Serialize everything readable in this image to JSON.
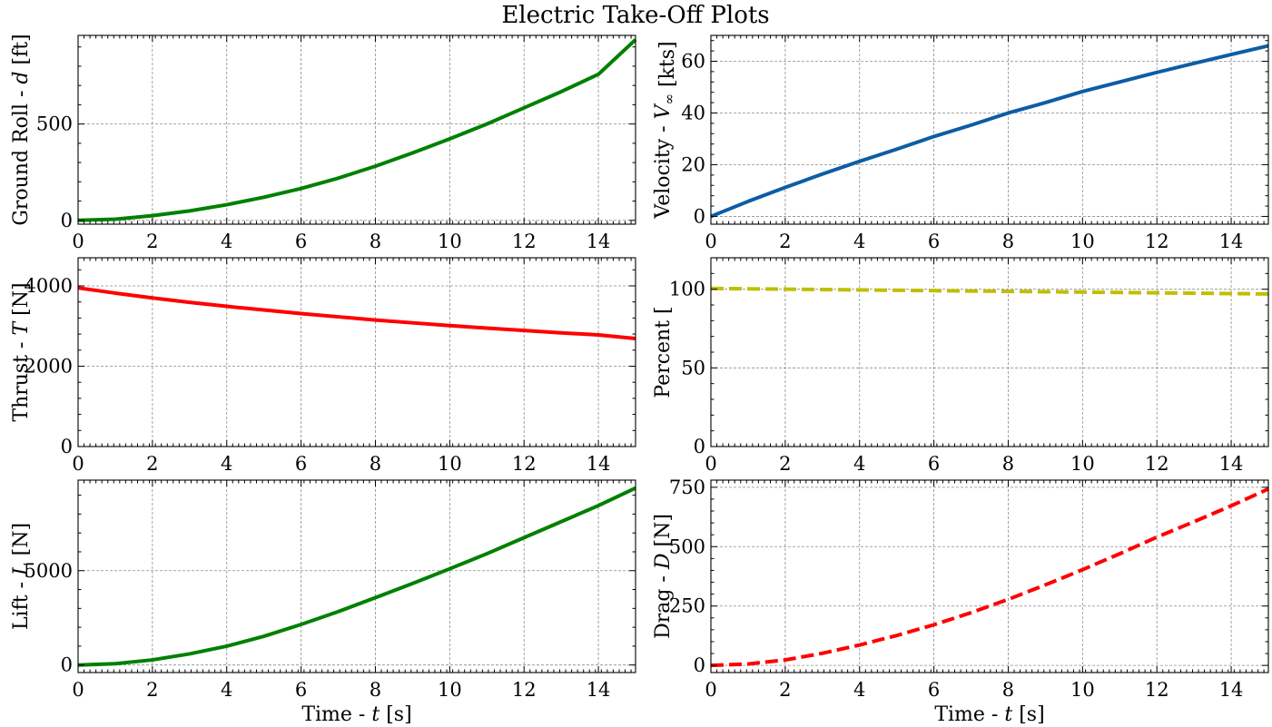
{
  "figure": {
    "title": "Electric Take-Off Plots"
  },
  "chart_data": [
    {
      "id": "ground-roll",
      "type": "line",
      "ylabel_main": "Ground Roll - ",
      "ylabel_sym": "d",
      "ylabel_unit": " [ft]",
      "xlabel_main": "",
      "xlabel_sym": "",
      "xlabel_unit": "",
      "xlim": [
        0,
        15
      ],
      "ylim": [
        -20,
        960
      ],
      "xticks": [
        0,
        2,
        4,
        6,
        8,
        10,
        12,
        14
      ],
      "yticks": [
        0,
        500
      ],
      "grid": true,
      "color": "#008000",
      "dash": "solid",
      "x": [
        0,
        1,
        2,
        3,
        4,
        5,
        6,
        7,
        8,
        9,
        10,
        11,
        12,
        13,
        14,
        15
      ],
      "y": [
        0,
        6,
        24,
        49,
        81,
        120,
        165,
        219,
        281,
        350,
        423,
        500,
        584,
        668,
        758,
        938
      ]
    },
    {
      "id": "velocity",
      "type": "line",
      "ylabel_main": "Velocity - ",
      "ylabel_sym": "V",
      "ylabel_sub": "∞",
      "ylabel_unit": " [kts]",
      "xlabel_main": "",
      "xlabel_sym": "",
      "xlabel_unit": "",
      "xlim": [
        0,
        15
      ],
      "ylim": [
        -3,
        70
      ],
      "xticks": [
        0,
        2,
        4,
        6,
        8,
        10,
        12,
        14
      ],
      "yticks": [
        0,
        20,
        40,
        60
      ],
      "grid": true,
      "color": "#0c5da5",
      "dash": "solid",
      "x": [
        0,
        1,
        2,
        3,
        4,
        5,
        6,
        7,
        8,
        9,
        10,
        11,
        12,
        13,
        14,
        15
      ],
      "y": [
        0,
        5.8,
        11.2,
        16.4,
        21.3,
        26.0,
        30.9,
        35.3,
        40.0,
        44.0,
        48.3,
        52.0,
        55.7,
        59.2,
        62.6,
        66.0
      ]
    },
    {
      "id": "thrust",
      "type": "line",
      "ylabel_main": "Thrust - ",
      "ylabel_sym": "T",
      "ylabel_unit": " [N]",
      "xlabel_main": "",
      "xlabel_sym": "",
      "xlabel_unit": "",
      "xlim": [
        0,
        15
      ],
      "ylim": [
        0,
        4700
      ],
      "xticks": [
        0,
        2,
        4,
        6,
        8,
        10,
        12,
        14
      ],
      "yticks": [
        0,
        2000,
        4000
      ],
      "grid": true,
      "color": "#ff0000",
      "dash": "solid",
      "x": [
        0,
        1,
        2,
        3,
        4,
        5,
        6,
        7,
        8,
        9,
        10,
        11,
        12,
        13,
        14,
        15
      ],
      "y": [
        3950,
        3820,
        3700,
        3590,
        3490,
        3400,
        3310,
        3230,
        3150,
        3080,
        3010,
        2950,
        2890,
        2830,
        2780,
        2690
      ]
    },
    {
      "id": "percent",
      "type": "line",
      "ylabel_main": "Percent [",
      "ylabel_sym": "",
      "ylabel_unit": "",
      "xlabel_main": "",
      "xlabel_sym": "",
      "xlabel_unit": "",
      "xlim": [
        0,
        15
      ],
      "ylim": [
        0,
        120
      ],
      "xticks": [
        0,
        2,
        4,
        6,
        8,
        10,
        12,
        14
      ],
      "yticks": [
        0,
        50,
        100
      ],
      "grid": true,
      "color": "#bfbf00",
      "dash": "dashed",
      "x": [
        0,
        3,
        6,
        9,
        12,
        15
      ],
      "y": [
        100.5,
        99.8,
        99.1,
        98.4,
        97.7,
        97.0
      ]
    },
    {
      "id": "lift",
      "type": "line",
      "ylabel_main": "Lift - ",
      "ylabel_sym": "L",
      "ylabel_unit": " [N]",
      "xlabel_main": "Time - ",
      "xlabel_sym": "t",
      "xlabel_unit": " [s]",
      "xlim": [
        0,
        15
      ],
      "ylim": [
        -400,
        9800
      ],
      "xticks": [
        0,
        2,
        4,
        6,
        8,
        10,
        12,
        14
      ],
      "yticks": [
        0,
        5000
      ],
      "grid": true,
      "color": "#008000",
      "dash": "solid",
      "x": [
        0,
        1,
        2,
        3,
        4,
        5,
        6,
        7,
        8,
        9,
        10,
        11,
        12,
        13,
        14,
        15
      ],
      "y": [
        0,
        70,
        270,
        590,
        1000,
        1520,
        2150,
        2830,
        3570,
        4320,
        5100,
        5900,
        6750,
        7600,
        8450,
        9380
      ]
    },
    {
      "id": "drag",
      "type": "line",
      "ylabel_main": "Drag - ",
      "ylabel_sym": "D",
      "ylabel_unit": " [N]",
      "xlabel_main": "Time - ",
      "xlabel_sym": "t",
      "xlabel_unit": " [s]",
      "xlim": [
        0,
        15
      ],
      "ylim": [
        -30,
        780
      ],
      "xticks": [
        0,
        2,
        4,
        6,
        8,
        10,
        12,
        14
      ],
      "yticks": [
        0,
        250,
        500,
        750
      ],
      "grid": true,
      "color": "#ff0000",
      "dash": "dashed",
      "x": [
        0,
        1,
        2,
        3,
        4,
        5,
        6,
        7,
        8,
        9,
        10,
        11,
        12,
        13,
        14,
        15
      ],
      "y": [
        0,
        6,
        23,
        51,
        86,
        126,
        171,
        222,
        278,
        339,
        403,
        470,
        540,
        605,
        672,
        743
      ]
    }
  ]
}
